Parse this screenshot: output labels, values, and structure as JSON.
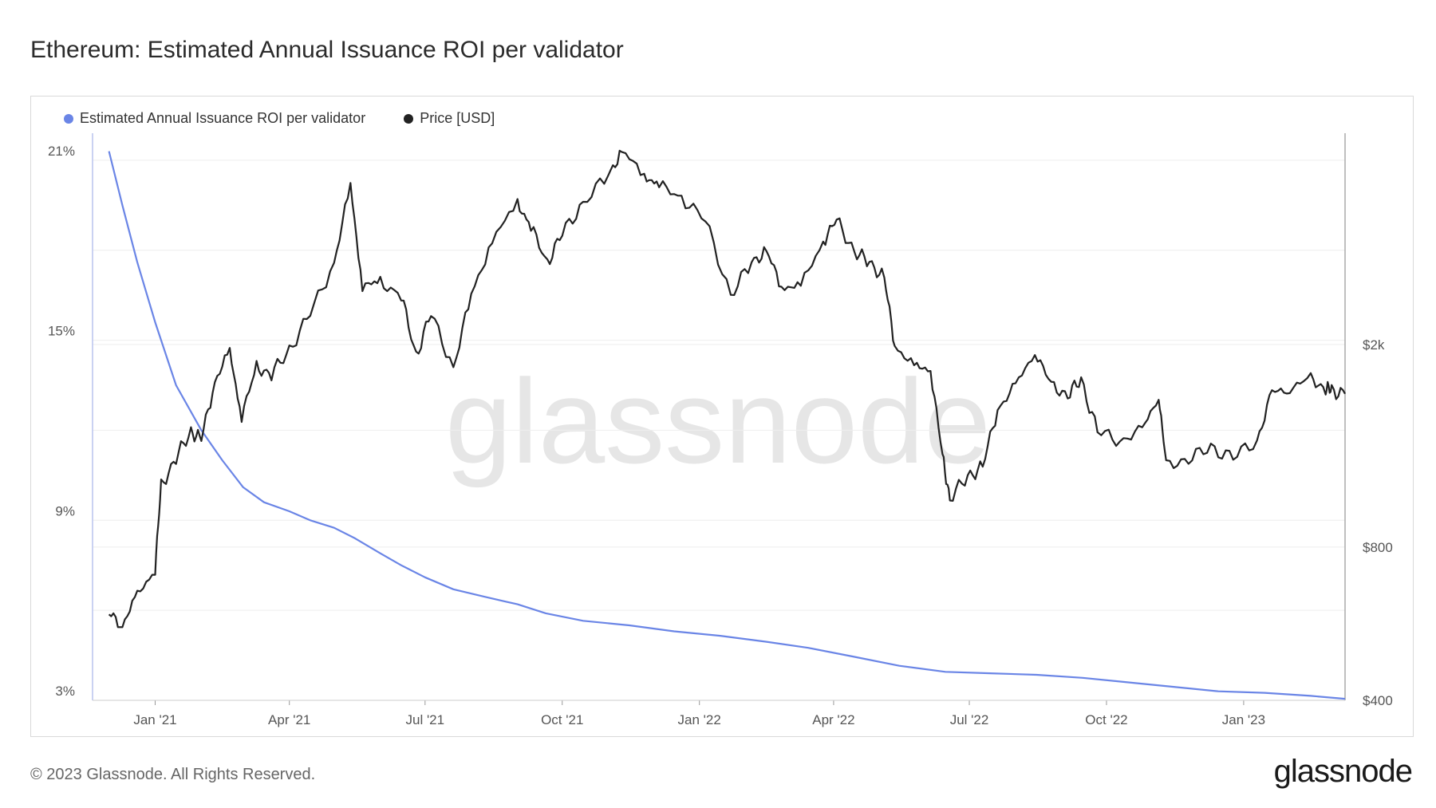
{
  "title": "Ethereum: Estimated Annual Issuance ROI per validator",
  "footer": "© 2023 Glassnode. All Rights Reserved.",
  "logo": "glassnode",
  "watermark": "glassnode",
  "colors": {
    "roi": "#6a85e6",
    "price": "#222222",
    "grid": "#eeeeee",
    "axis": "#b9c4ee"
  },
  "chart_data": {
    "type": "line",
    "title": "Ethereum: Estimated Annual Issuance ROI per validator",
    "x_range": [
      "2020-11-20",
      "2023-03-10"
    ],
    "x_ticks": [
      "Jan '21",
      "Apr '21",
      "Jul '21",
      "Oct '21",
      "Jan '22",
      "Apr '22",
      "Jul '22",
      "Oct '22",
      "Jan '23"
    ],
    "x_tick_dates": [
      "2021-01-01",
      "2021-04-01",
      "2021-07-01",
      "2021-10-01",
      "2022-01-01",
      "2022-04-01",
      "2022-07-01",
      "2022-10-01",
      "2023-01-01"
    ],
    "y_left": {
      "ticks": [
        "3%",
        "9%",
        "15%",
        "21%"
      ],
      "tick_values": [
        3,
        9,
        15,
        21
      ],
      "range": [
        3,
        21.9
      ]
    },
    "y_right": {
      "ticks": [
        "$400",
        "$800",
        "$2k"
      ],
      "tick_values": [
        400,
        800,
        2000
      ],
      "scale": "log",
      "range": [
        400,
        5200
      ]
    },
    "legend": [
      "Estimated Annual Issuance ROI per validator",
      "Price [USD]"
    ],
    "legend_position": "top-left",
    "series": [
      {
        "name": "Estimated Annual Issuance ROI per validator",
        "axis": "left",
        "color": "#6a85e6",
        "points": [
          [
            "2020-12-01",
            21.3
          ],
          [
            "2020-12-10",
            19.5
          ],
          [
            "2020-12-20",
            17.6
          ],
          [
            "2021-01-01",
            15.6
          ],
          [
            "2021-01-15",
            13.5
          ],
          [
            "2021-02-01",
            12.0
          ],
          [
            "2021-02-15",
            11.0
          ],
          [
            "2021-03-01",
            10.1
          ],
          [
            "2021-03-15",
            9.6
          ],
          [
            "2021-04-01",
            9.3
          ],
          [
            "2021-04-15",
            9.0
          ],
          [
            "2021-05-01",
            8.75
          ],
          [
            "2021-05-15",
            8.4
          ],
          [
            "2021-06-01",
            7.9
          ],
          [
            "2021-06-15",
            7.5
          ],
          [
            "2021-07-01",
            7.1
          ],
          [
            "2021-07-20",
            6.7
          ],
          [
            "2021-08-10",
            6.45
          ],
          [
            "2021-09-01",
            6.2
          ],
          [
            "2021-09-20",
            5.9
          ],
          [
            "2021-10-15",
            5.65
          ],
          [
            "2021-11-15",
            5.5
          ],
          [
            "2021-12-15",
            5.3
          ],
          [
            "2022-01-15",
            5.15
          ],
          [
            "2022-02-15",
            4.95
          ],
          [
            "2022-03-15",
            4.75
          ],
          [
            "2022-04-15",
            4.45
          ],
          [
            "2022-05-15",
            4.15
          ],
          [
            "2022-06-15",
            3.95
          ],
          [
            "2022-07-15",
            3.9
          ],
          [
            "2022-08-15",
            3.85
          ],
          [
            "2022-09-15",
            3.75
          ],
          [
            "2022-10-15",
            3.6
          ],
          [
            "2022-11-15",
            3.45
          ],
          [
            "2022-12-15",
            3.3
          ],
          [
            "2023-01-15",
            3.25
          ],
          [
            "2023-02-15",
            3.15
          ],
          [
            "2023-03-10",
            3.05
          ]
        ]
      },
      {
        "name": "Price [USD]",
        "axis": "right",
        "color": "#222222",
        "points": [
          [
            "2020-12-01",
            590
          ],
          [
            "2020-12-10",
            565
          ],
          [
            "2020-12-20",
            640
          ],
          [
            "2021-01-01",
            730
          ],
          [
            "2021-01-05",
            1050
          ],
          [
            "2021-01-15",
            1200
          ],
          [
            "2021-01-25",
            1350
          ],
          [
            "2021-02-01",
            1300
          ],
          [
            "2021-02-10",
            1700
          ],
          [
            "2021-02-20",
            1930
          ],
          [
            "2021-02-28",
            1450
          ],
          [
            "2021-03-10",
            1800
          ],
          [
            "2021-03-20",
            1750
          ],
          [
            "2021-04-01",
            1950
          ],
          [
            "2021-04-15",
            2300
          ],
          [
            "2021-05-01",
            2900
          ],
          [
            "2021-05-12",
            4100
          ],
          [
            "2021-05-20",
            2600
          ],
          [
            "2021-06-01",
            2650
          ],
          [
            "2021-06-15",
            2500
          ],
          [
            "2021-06-25",
            1900
          ],
          [
            "2021-07-05",
            2300
          ],
          [
            "2021-07-20",
            1800
          ],
          [
            "2021-08-01",
            2500
          ],
          [
            "2021-08-15",
            3200
          ],
          [
            "2021-09-01",
            3800
          ],
          [
            "2021-09-10",
            3400
          ],
          [
            "2021-09-21",
            2900
          ],
          [
            "2021-10-01",
            3300
          ],
          [
            "2021-10-15",
            3800
          ],
          [
            "2021-11-01",
            4300
          ],
          [
            "2021-11-10",
            4800
          ],
          [
            "2021-11-25",
            4300
          ],
          [
            "2021-12-05",
            4100
          ],
          [
            "2021-12-20",
            3900
          ],
          [
            "2022-01-05",
            3500
          ],
          [
            "2022-01-22",
            2500
          ],
          [
            "2022-02-05",
            2900
          ],
          [
            "2022-02-15",
            3050
          ],
          [
            "2022-02-25",
            2600
          ],
          [
            "2022-03-10",
            2600
          ],
          [
            "2022-03-25",
            3200
          ],
          [
            "2022-04-03",
            3500
          ],
          [
            "2022-04-15",
            3050
          ],
          [
            "2022-04-25",
            2900
          ],
          [
            "2022-05-05",
            2700
          ],
          [
            "2022-05-12",
            2000
          ],
          [
            "2022-05-25",
            1800
          ],
          [
            "2022-06-05",
            1800
          ],
          [
            "2022-06-13",
            1200
          ],
          [
            "2022-06-18",
            1000
          ],
          [
            "2022-06-30",
            1100
          ],
          [
            "2022-07-10",
            1150
          ],
          [
            "2022-07-20",
            1500
          ],
          [
            "2022-08-01",
            1650
          ],
          [
            "2022-08-14",
            1950
          ],
          [
            "2022-08-25",
            1650
          ],
          [
            "2022-09-05",
            1600
          ],
          [
            "2022-09-14",
            1700
          ],
          [
            "2022-09-25",
            1350
          ],
          [
            "2022-10-10",
            1300
          ],
          [
            "2022-10-25",
            1350
          ],
          [
            "2022-11-05",
            1600
          ],
          [
            "2022-11-10",
            1150
          ],
          [
            "2022-11-25",
            1200
          ],
          [
            "2022-12-10",
            1250
          ],
          [
            "2022-12-25",
            1200
          ],
          [
            "2023-01-10",
            1300
          ],
          [
            "2023-01-20",
            1600
          ],
          [
            "2023-02-01",
            1650
          ],
          [
            "2023-02-15",
            1700
          ],
          [
            "2023-02-25",
            1650
          ],
          [
            "2023-03-01",
            1620
          ],
          [
            "2023-03-10",
            1600
          ]
        ]
      }
    ],
    "grid": true
  }
}
